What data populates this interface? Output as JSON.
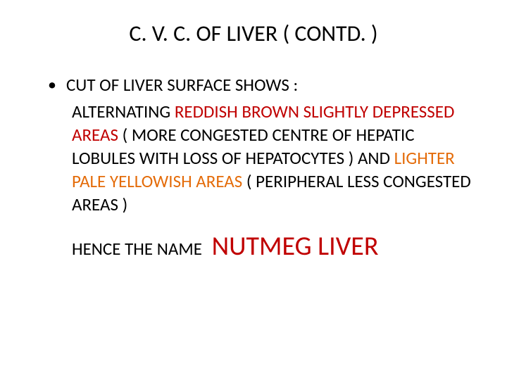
{
  "slide": {
    "title": "C. V. C. OF LIVER  ( CONTD. )",
    "bullet_intro": "CUT OF LIVER SURFACE SHOWS  :",
    "body_part1": " ALTERNATING  ",
    "body_red1": "REDDISH BROWN  SLIGHTLY DEPRESSED AREAS ",
    "body_part2": "  ( MORE CONGESTED CENTRE OF HEPATIC LOBULES WITH LOSS OF HEPATOCYTES ) AND ",
    "body_orange1": "LIGHTER PALE YELLOWISH AREAS ",
    "body_part3": " (  PERIPHERAL  LESS CONGESTED AREAS  )",
    "hence_text": "HENCE THE NAME ",
    "nutmeg_text": " NUTMEG LIVER"
  },
  "colors": {
    "text": "#000000",
    "red": "#c00000",
    "orange": "#e46c0a",
    "background": "#ffffff"
  },
  "typography": {
    "title_fontsize": 32,
    "body_fontsize": 25,
    "nutmeg_fontsize": 38
  }
}
